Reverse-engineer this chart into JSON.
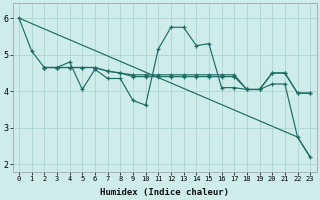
{
  "xlabel": "Humidex (Indice chaleur)",
  "bg_color": "#ceecea",
  "grid_color": "#b2d8d4",
  "line_color": "#1e6b65",
  "xlim": [
    -0.5,
    23.5
  ],
  "ylim": [
    1.8,
    6.4
  ],
  "yticks": [
    2,
    3,
    4,
    5,
    6
  ],
  "xticks": [
    0,
    1,
    2,
    3,
    4,
    5,
    6,
    7,
    8,
    9,
    10,
    11,
    12,
    13,
    14,
    15,
    16,
    17,
    18,
    19,
    20,
    21,
    22,
    23
  ],
  "line1": {
    "x": [
      0,
      1,
      2,
      3,
      4,
      5,
      6,
      7,
      8,
      9,
      10,
      11,
      12,
      13,
      14,
      15,
      16,
      17,
      18,
      19,
      20,
      21,
      22,
      23
    ],
    "y": [
      6.0,
      5.1,
      4.65,
      4.65,
      4.8,
      4.05,
      4.6,
      4.35,
      4.35,
      3.75,
      3.62,
      5.15,
      5.75,
      5.75,
      5.25,
      5.3,
      4.1,
      4.1,
      4.05,
      4.05,
      4.2,
      4.2,
      2.75,
      2.2
    ]
  },
  "line2": {
    "x": [
      2,
      3,
      4,
      5,
      6,
      7,
      8,
      9,
      10,
      11,
      12,
      13,
      14,
      15,
      16,
      17,
      18,
      19,
      20,
      21,
      22,
      23
    ],
    "y": [
      4.65,
      4.65,
      4.65,
      4.65,
      4.65,
      4.55,
      4.5,
      4.45,
      4.45,
      4.45,
      4.45,
      4.45,
      4.45,
      4.45,
      4.45,
      4.45,
      4.05,
      4.05,
      4.5,
      4.5,
      3.95,
      3.95
    ]
  },
  "line3": {
    "x": [
      2,
      3,
      4,
      5,
      6,
      7,
      8,
      9,
      10,
      11,
      12,
      13,
      14,
      15,
      16,
      17,
      18,
      19,
      20,
      21,
      22,
      23
    ],
    "y": [
      4.65,
      4.65,
      4.65,
      4.65,
      4.65,
      4.55,
      4.5,
      4.4,
      4.4,
      4.4,
      4.4,
      4.4,
      4.4,
      4.4,
      4.4,
      4.4,
      4.05,
      4.05,
      4.5,
      4.5,
      3.95,
      3.95
    ]
  },
  "line4": {
    "x": [
      0,
      22,
      23
    ],
    "y": [
      6.0,
      2.75,
      2.2
    ]
  }
}
